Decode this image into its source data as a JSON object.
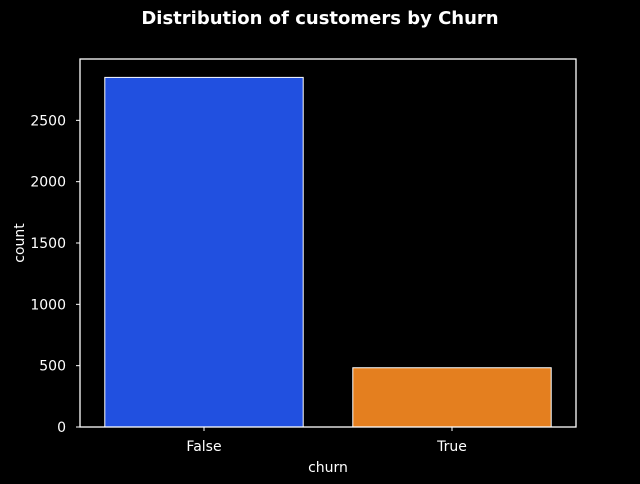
{
  "chart_data": {
    "type": "bar",
    "title": "Distribution of customers by Churn",
    "xlabel": "churn",
    "ylabel": "count",
    "categories": [
      "False",
      "True"
    ],
    "values": [
      2850,
      483
    ],
    "colors": [
      "#2150e0",
      "#e47f1f"
    ],
    "ylim": [
      0,
      3000
    ],
    "yticks": [
      0,
      500,
      1000,
      1500,
      2000,
      2500
    ],
    "grid": false,
    "background": "#000000",
    "axes_color": "#ffffff",
    "text_color": "#ffffff",
    "bar_edge_color": "#ffffff"
  }
}
